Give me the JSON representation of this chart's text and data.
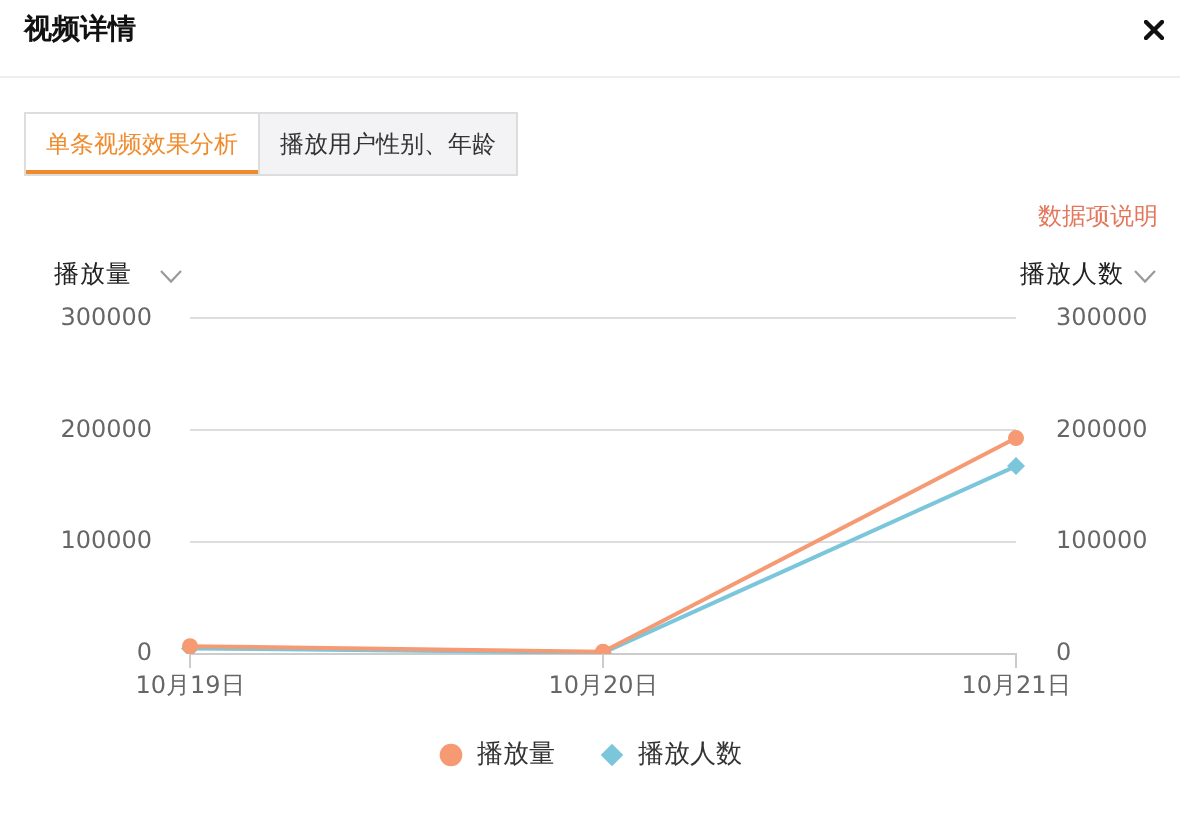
{
  "chart_data": {
    "type": "line",
    "title": "视频详情",
    "ylabel": "播放量",
    "y2label": "播放人数",
    "annotations": [
      "单条视频效果分析",
      "播放用户性别、年龄",
      "数据项说明"
    ],
    "categories": [
      "10月19日",
      "10月20日",
      "10月21日"
    ],
    "series": [
      {
        "name": "播放量",
        "color": "#f59a72",
        "marker": "circle",
        "values": [
          7000,
          2000,
          193000
        ]
      },
      {
        "name": "播放人数",
        "color": "#7cc6dc",
        "marker": "diamond",
        "axis": "y2",
        "values": [
          5000,
          1000,
          168000
        ]
      }
    ],
    "ylim": [
      0,
      300000
    ],
    "yticks": [
      0,
      100000,
      200000,
      300000
    ],
    "y2lim": [
      0,
      300000
    ],
    "y2ticks": [
      0,
      100000,
      200000,
      300000
    ],
    "grid": "y",
    "legend": "bottom",
    "line_style": "solid"
  }
}
